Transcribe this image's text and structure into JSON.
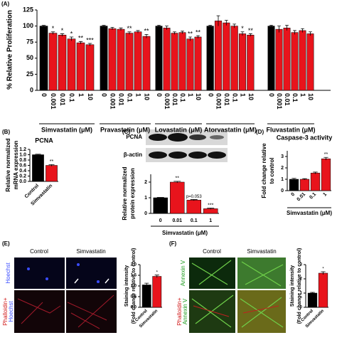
{
  "chart_data": [
    {
      "type": "bar",
      "panel": "(A)",
      "ylabel": [
        "% Relative Proliferation"
      ],
      "ylim": [
        0,
        125
      ],
      "yticks": [
        0,
        25,
        50,
        75,
        100,
        125
      ],
      "groups": [
        {
          "name": "Simvastatin (μM)",
          "categories": [
            "0",
            "0.001",
            "0.01",
            "0.1",
            "1",
            "10"
          ],
          "values": [
            100,
            89,
            86,
            80,
            74,
            71
          ],
          "errors": [
            1,
            2,
            2,
            3,
            2,
            2
          ],
          "colors": [
            "#000000",
            "#e8141c",
            "#e8141c",
            "#e8141c",
            "#e8141c",
            "#e8141c"
          ],
          "annotations": [
            null,
            "*",
            "*",
            "*",
            "**",
            "***"
          ]
        },
        {
          "name": "Pravastatin (μM)",
          "categories": [
            "0",
            "0.001",
            "0.01",
            "0.1",
            "1",
            "10"
          ],
          "values": [
            100,
            96,
            95,
            89,
            91,
            84
          ],
          "errors": [
            1,
            2,
            2,
            2,
            2,
            3
          ],
          "colors": [
            "#000000",
            "#e8141c",
            "#e8141c",
            "#e8141c",
            "#e8141c",
            "#e8141c"
          ],
          "annotations": [
            null,
            null,
            null,
            "**",
            null,
            "**"
          ]
        },
        {
          "name": "Lovastatin (μM)",
          "categories": [
            "0",
            "0.001",
            "0.01",
            "0.1",
            "1",
            "10"
          ],
          "values": [
            100,
            97,
            89,
            90,
            80,
            83
          ],
          "errors": [
            1,
            3,
            2,
            2,
            3,
            2
          ],
          "colors": [
            "#000000",
            "#e8141c",
            "#e8141c",
            "#e8141c",
            "#e8141c",
            "#e8141c"
          ],
          "annotations": [
            null,
            null,
            null,
            null,
            "**",
            "**"
          ]
        },
        {
          "name": "Atorvastatin (μM)",
          "categories": [
            "0",
            "0.001",
            "0.01",
            "0.1",
            "1",
            "10"
          ],
          "values": [
            100,
            108,
            105,
            100,
            88,
            86
          ],
          "errors": [
            1,
            8,
            4,
            3,
            3,
            2
          ],
          "colors": [
            "#000000",
            "#e8141c",
            "#e8141c",
            "#e8141c",
            "#e8141c",
            "#e8141c"
          ],
          "annotations": [
            null,
            null,
            null,
            null,
            "*",
            "**"
          ]
        },
        {
          "name": "Fluvastatin (μM)",
          "categories": [
            "0",
            "0.001",
            "0.01",
            "0.1",
            "1",
            "10"
          ],
          "values": [
            100,
            95,
            97,
            90,
            93,
            88
          ],
          "errors": [
            1,
            5,
            4,
            3,
            3,
            3
          ],
          "colors": [
            "#000000",
            "#e8141c",
            "#e8141c",
            "#e8141c",
            "#e8141c",
            "#e8141c"
          ],
          "annotations": [
            null,
            null,
            null,
            null,
            null,
            null
          ]
        }
      ]
    },
    {
      "type": "bar",
      "panel": "(B)",
      "title": "PCNA",
      "ylabel": [
        "Relative normalized",
        "mRNA expression"
      ],
      "ylim": [
        0,
        1.2
      ],
      "yticks": [
        {
          "value": 0,
          "label": "0.0"
        },
        0.2,
        0.4,
        0.6,
        0.8,
        {
          "value": 1,
          "label": "1.0"
        },
        1.2
      ],
      "categories": [
        "Control",
        "Simvastatin"
      ],
      "values": [
        1.0,
        0.6
      ],
      "errors": [
        0.02,
        0.03
      ],
      "colors": [
        "#000000",
        "#e8141c"
      ],
      "annotations": [
        null,
        "**"
      ]
    },
    {
      "type": "bar",
      "panel": "(C)",
      "blot": [
        "PCNA",
        "β-actin"
      ],
      "ylabel": [
        "Relative normalized",
        "protein expression"
      ],
      "xlabel": "Simvastatin (μM)",
      "ylim": [
        0,
        2.5
      ],
      "yticks": [
        0,
        1,
        2
      ],
      "categories": [
        "0",
        "0.01",
        "0.1",
        "1"
      ],
      "values": [
        1.0,
        2.0,
        0.85,
        0.3
      ],
      "errors": [
        0.02,
        0.05,
        0.04,
        0.04
      ],
      "colors": [
        "#000000",
        "#e8141c",
        "#e8141c",
        "#e8141c"
      ],
      "annotations": [
        null,
        "**",
        "p=0.053",
        "***"
      ]
    },
    {
      "type": "bar",
      "panel": "(D)",
      "title": "Caspase-3 activity",
      "ylabel": [
        "Fold change relative",
        "to control"
      ],
      "xlabel": "Simvastatin (μM)",
      "ylim": [
        0,
        3.5
      ],
      "yticks": [
        0,
        1,
        2,
        3
      ],
      "categories": [
        "0",
        "0.01",
        "0.1",
        "1"
      ],
      "values": [
        1.0,
        1.0,
        1.55,
        2.8
      ],
      "errors": [
        0.08,
        0.05,
        0.08,
        0.12
      ],
      "colors": [
        "#000000",
        "#e8141c",
        "#e8141c",
        "#e8141c"
      ],
      "annotations": [
        null,
        null,
        null,
        "**"
      ]
    },
    {
      "type": "bar",
      "panel": "(E)",
      "ylabel": [
        "Staining intensity",
        "(Fold change relative to control)"
      ],
      "ylim": [
        0,
        2.0
      ],
      "yticks": [
        {
          "value": 0,
          "label": "0.0"
        },
        0.5,
        {
          "value": 1,
          "label": "1.0"
        },
        1.5,
        {
          "value": 2,
          "label": "2.0"
        }
      ],
      "columns": [
        "Control",
        "Simvastatin"
      ],
      "rows": [
        [
          "Hoechst"
        ],
        [
          "Phalloidin+",
          "Hoechst"
        ]
      ],
      "categories": [
        "Control",
        "Simvastatin"
      ],
      "values": [
        1.05,
        1.45
      ],
      "errors": [
        0.08,
        0.06
      ],
      "colors": [
        "#000000",
        "#e8141c"
      ],
      "annotations": [
        null,
        "*"
      ]
    },
    {
      "type": "bar",
      "panel": "(F)",
      "ylabel": [
        "Staining intensity",
        "(Fold change relative to control)"
      ],
      "ylim": [
        0,
        3
      ],
      "yticks": [
        0,
        1,
        2,
        3
      ],
      "columns": [
        "Control",
        "Simvastatin"
      ],
      "rows": [
        [
          "Annexin V"
        ],
        [
          "Phalloidin+",
          "Annexin V"
        ]
      ],
      "categories": [
        "Control",
        "Simvastatin"
      ],
      "values": [
        1.0,
        2.4
      ],
      "errors": [
        0.05,
        0.1
      ],
      "colors": [
        "#000000",
        "#e8141c"
      ],
      "annotations": [
        null,
        "*"
      ]
    }
  ]
}
